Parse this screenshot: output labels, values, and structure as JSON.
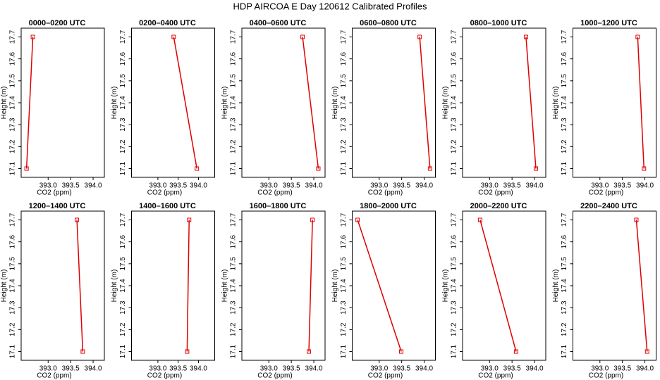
{
  "title": "HDP AIRCOA E  Day 120612  Calibrated Profiles",
  "chart_data": [
    {
      "type": "line",
      "title": "0000–0200 UTC",
      "xlabel": "CO2 (ppm)",
      "ylabel": "Height (m)",
      "x": [
        392.52,
        392.66
      ],
      "values": [
        17.1,
        17.7
      ],
      "color": "#e00000",
      "xlim": [
        392.4,
        394.25
      ],
      "ylim": [
        17.06,
        17.74
      ],
      "xticks": [
        {
          "value": 393,
          "label": "393.0"
        },
        393.5,
        {
          "value": 394,
          "label": "394.0"
        }
      ],
      "yticks": [
        17.1,
        17.2,
        17.3,
        17.4,
        17.5,
        17.6,
        17.7
      ]
    },
    {
      "type": "line",
      "title": "0200–0400 UTC",
      "xlabel": "CO2 (ppm)",
      "ylabel": "Height (m)",
      "x": [
        393.96,
        393.39
      ],
      "values": [
        17.1,
        17.7
      ],
      "color": "#e00000",
      "xlim": [
        392.35,
        394.4
      ],
      "ylim": [
        17.06,
        17.74
      ],
      "xticks": [
        {
          "value": 393,
          "label": "393.0"
        },
        393.5,
        {
          "value": 394,
          "label": "394.0"
        }
      ],
      "yticks": [
        17.1,
        17.2,
        17.3,
        17.4,
        17.5,
        17.6,
        17.7
      ]
    },
    {
      "type": "line",
      "title": "0400–0600 UTC",
      "xlabel": "CO2 (ppm)",
      "ylabel": "Height (m)",
      "x": [
        394.1,
        393.75
      ],
      "values": [
        17.1,
        17.7
      ],
      "color": "#e00000",
      "xlim": [
        392.4,
        394.25
      ],
      "ylim": [
        17.06,
        17.74
      ],
      "xticks": [
        {
          "value": 393,
          "label": "393.0"
        },
        393.5,
        {
          "value": 394,
          "label": "394.0"
        }
      ],
      "yticks": [
        17.1,
        17.2,
        17.3,
        17.4,
        17.5,
        17.6,
        17.7
      ]
    },
    {
      "type": "line",
      "title": "0600–0800 UTC",
      "xlabel": "CO2 (ppm)",
      "ylabel": "Height (m)",
      "x": [
        394.13,
        393.9
      ],
      "values": [
        17.1,
        17.7
      ],
      "color": "#e00000",
      "xlim": [
        392.4,
        394.25
      ],
      "ylim": [
        17.06,
        17.74
      ],
      "xticks": [
        {
          "value": 393,
          "label": "393.0"
        },
        393.5,
        {
          "value": 394,
          "label": "394.0"
        }
      ],
      "yticks": [
        17.1,
        17.2,
        17.3,
        17.4,
        17.5,
        17.6,
        17.7
      ]
    },
    {
      "type": "line",
      "title": "0800–1000 UTC",
      "xlabel": "CO2 (ppm)",
      "ylabel": "Height (m)",
      "x": [
        394.03,
        393.81
      ],
      "values": [
        17.1,
        17.7
      ],
      "color": "#e00000",
      "xlim": [
        392.4,
        394.25
      ],
      "ylim": [
        17.06,
        17.74
      ],
      "xticks": [
        {
          "value": 393,
          "label": "393.0"
        },
        393.5,
        {
          "value": 394,
          "label": "394.0"
        }
      ],
      "yticks": [
        17.1,
        17.2,
        17.3,
        17.4,
        17.5,
        17.6,
        17.7
      ]
    },
    {
      "type": "line",
      "title": "1000–1200 UTC",
      "xlabel": "CO2 (ppm)",
      "ylabel": "Height (m)",
      "x": [
        393.98,
        393.84
      ],
      "values": [
        17.1,
        17.7
      ],
      "color": "#e00000",
      "xlim": [
        392.4,
        394.25
      ],
      "ylim": [
        17.06,
        17.74
      ],
      "xticks": [
        {
          "value": 393,
          "label": "393.0"
        },
        393.5,
        {
          "value": 394,
          "label": "394.0"
        }
      ],
      "yticks": [
        17.1,
        17.2,
        17.3,
        17.4,
        17.5,
        17.6,
        17.7
      ]
    },
    {
      "type": "line",
      "title": "1200–1400 UTC",
      "xlabel": "CO2 (ppm)",
      "ylabel": "Height (m)",
      "x": [
        393.77,
        393.64
      ],
      "values": [
        17.1,
        17.7
      ],
      "color": "#e00000",
      "xlim": [
        392.4,
        394.25
      ],
      "ylim": [
        17.06,
        17.74
      ],
      "xticks": [
        {
          "value": 393,
          "label": "393.0"
        },
        393.5,
        {
          "value": 394,
          "label": "394.0"
        }
      ],
      "yticks": [
        17.1,
        17.2,
        17.3,
        17.4,
        17.5,
        17.6,
        17.7
      ]
    },
    {
      "type": "line",
      "title": "1400–1600 UTC",
      "xlabel": "CO2 (ppm)",
      "ylabel": "Height (m)",
      "x": [
        393.72,
        393.77
      ],
      "values": [
        17.1,
        17.7
      ],
      "color": "#e00000",
      "xlim": [
        392.35,
        394.4
      ],
      "ylim": [
        17.06,
        17.74
      ],
      "xticks": [
        {
          "value": 393,
          "label": "393.0"
        },
        393.5,
        {
          "value": 394,
          "label": "394.0"
        }
      ],
      "yticks": [
        17.1,
        17.2,
        17.3,
        17.4,
        17.5,
        17.6,
        17.7
      ]
    },
    {
      "type": "line",
      "title": "1600–1800 UTC",
      "xlabel": "CO2 (ppm)",
      "ylabel": "Height (m)",
      "x": [
        393.89,
        393.97
      ],
      "values": [
        17.1,
        17.7
      ],
      "color": "#e00000",
      "xlim": [
        392.4,
        394.25
      ],
      "ylim": [
        17.06,
        17.74
      ],
      "xticks": [
        {
          "value": 393,
          "label": "393.0"
        },
        393.5,
        {
          "value": 394,
          "label": "394.0"
        }
      ],
      "yticks": [
        17.1,
        17.2,
        17.3,
        17.4,
        17.5,
        17.6,
        17.7
      ]
    },
    {
      "type": "line",
      "title": "1800–2000 UTC",
      "xlabel": "CO2 (ppm)",
      "ylabel": "Height (m)",
      "x": [
        393.49,
        392.52
      ],
      "values": [
        17.1,
        17.7
      ],
      "color": "#e00000",
      "xlim": [
        392.4,
        394.25
      ],
      "ylim": [
        17.06,
        17.74
      ],
      "xticks": [
        {
          "value": 393,
          "label": "393.0"
        },
        393.5,
        {
          "value": 394,
          "label": "394.0"
        }
      ],
      "yticks": [
        17.1,
        17.2,
        17.3,
        17.4,
        17.5,
        17.6,
        17.7
      ]
    },
    {
      "type": "line",
      "title": "2000–2200 UTC",
      "xlabel": "CO2 (ppm)",
      "ylabel": "Height (m)",
      "x": [
        393.59,
        392.79
      ],
      "values": [
        17.1,
        17.7
      ],
      "color": "#e00000",
      "xlim": [
        392.4,
        394.25
      ],
      "ylim": [
        17.06,
        17.74
      ],
      "xticks": [
        {
          "value": 393,
          "label": "393.0"
        },
        393.5,
        {
          "value": 394,
          "label": "394.0"
        }
      ],
      "yticks": [
        17.1,
        17.2,
        17.3,
        17.4,
        17.5,
        17.6,
        17.7
      ]
    },
    {
      "type": "line",
      "title": "2200–2400 UTC",
      "xlabel": "CO2 (ppm)",
      "ylabel": "Height (m)",
      "x": [
        394.05,
        393.81
      ],
      "values": [
        17.1,
        17.7
      ],
      "color": "#e00000",
      "xlim": [
        392.4,
        394.25
      ],
      "ylim": [
        17.06,
        17.74
      ],
      "xticks": [
        {
          "value": 393,
          "label": "393.0"
        },
        393.5,
        {
          "value": 394,
          "label": "394.0"
        }
      ],
      "yticks": [
        17.1,
        17.2,
        17.3,
        17.4,
        17.5,
        17.6,
        17.7
      ]
    }
  ]
}
